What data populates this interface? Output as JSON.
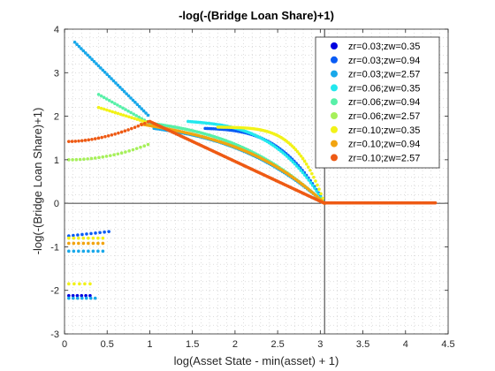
{
  "chart_data": {
    "type": "scatter",
    "title": "-log(-(Bridge Loan Share)+1)",
    "xlabel": "log(Asset State - min(asset) + 1)",
    "ylabel": "-log(-(Bridge Loan Share)+1)",
    "xlim": [
      0,
      4.5
    ],
    "ylim": [
      -3,
      4
    ],
    "xticks": [
      "0",
      "0.5",
      "1",
      "1.5",
      "2",
      "2.5",
      "3",
      "3.5",
      "4",
      "4.5"
    ],
    "yticks": [
      "-3",
      "-2",
      "-1",
      "0",
      "1",
      "2",
      "3",
      "4"
    ],
    "grid": "minor dotted",
    "legend_position": "top-right",
    "reference_lines": {
      "x": 3.05,
      "y": 0
    },
    "series": [
      {
        "name": "zr=0.03;zw=0.35",
        "color": "#0000e0"
      },
      {
        "name": "zr=0.03;zw=0.94",
        "color": "#0a5cf5"
      },
      {
        "name": "zr=0.03;zw=2.57",
        "color": "#18a8ea"
      },
      {
        "name": "zr=0.06;zw=0.35",
        "color": "#22e8ee"
      },
      {
        "name": "zr=0.06;zw=0.94",
        "color": "#58f0a8"
      },
      {
        "name": "zr=0.06;zw=2.57",
        "color": "#a6f05a"
      },
      {
        "name": "zr=0.10;zw=0.35",
        "color": "#f2f218"
      },
      {
        "name": "zr=0.10;zw=0.94",
        "color": "#f2a410"
      },
      {
        "name": "zr=0.10;zw=2.57",
        "color": "#ee5a14"
      }
    ]
  }
}
